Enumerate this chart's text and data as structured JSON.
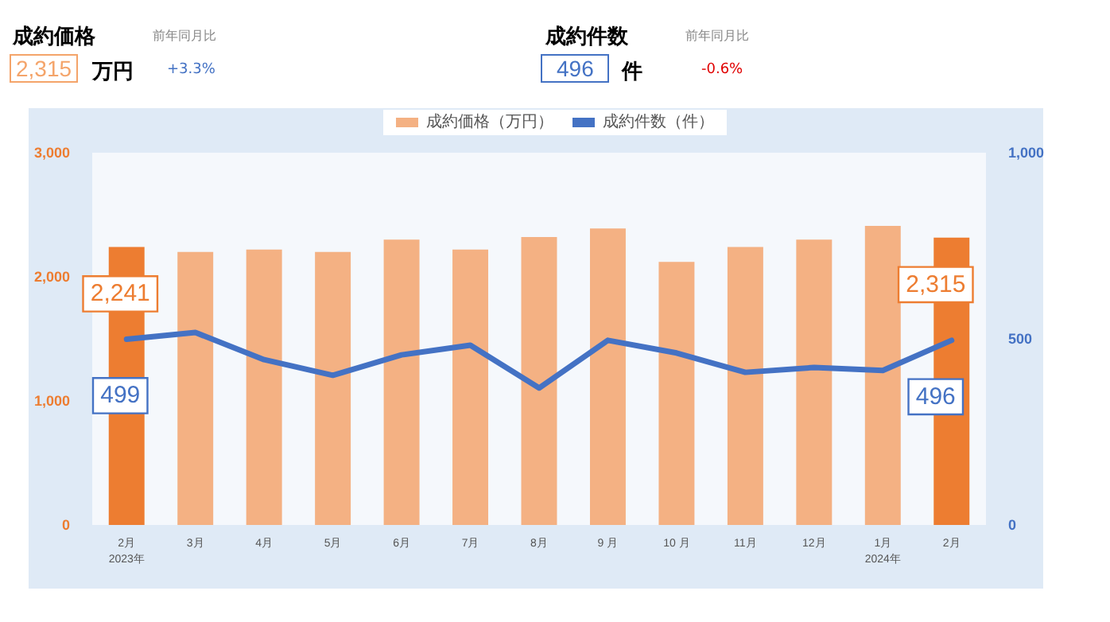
{
  "chart_data": {
    "type": "bar",
    "annotations": [
      "成約価格",
      "前年同月比",
      "2,315",
      "万円",
      "+3.3%",
      "成約件数",
      "前年同月比",
      "496",
      "件",
      "-0.6%"
    ],
    "categories": [
      "2月\n2023年",
      "3月",
      "4月",
      "5月",
      "6月",
      "7月",
      "8月",
      "9 月",
      "10 月",
      "11月",
      "12月",
      "1月\n2024年",
      "2月"
    ],
    "series": [
      {
        "name": "成約価格（万円）",
        "color": "#f4b183",
        "colors": [
          "#ed7d31",
          "#f4b183",
          "#f4b183",
          "#f4b183",
          "#f4b183",
          "#f4b183",
          "#f4b183",
          "#f4b183",
          "#f4b183",
          "#f4b183",
          "#f4b183",
          "#f4b183",
          "#ed7d31"
        ],
        "values": [
          2241,
          2200,
          2220,
          2200,
          2300,
          2220,
          2320,
          2390,
          2120,
          2240,
          2300,
          2410,
          2315
        ],
        "value_labels": [
          "2,241",
          null,
          null,
          null,
          null,
          null,
          null,
          null,
          null,
          null,
          null,
          null,
          "2,315"
        ]
      },
      {
        "name": "成約件数（件）",
        "type": "line",
        "axis": "y2",
        "color": "#4472c4",
        "values": [
          499,
          517,
          444,
          402,
          457,
          483,
          368,
          496,
          462,
          410,
          423,
          415,
          496
        ],
        "value_labels": [
          "499",
          null,
          null,
          null,
          null,
          null,
          null,
          null,
          null,
          null,
          null,
          null,
          "496"
        ]
      }
    ],
    "ylim": [
      0,
      3000
    ],
    "yticks": [
      0,
      {
        "value": 1000,
        "label": "1,000"
      },
      {
        "value": 2000,
        "label": "2,000"
      },
      {
        "value": 3000,
        "label": "3,000"
      }
    ],
    "y2lim": [
      0,
      1000
    ],
    "y2ticks": [
      0,
      500,
      {
        "value": 1000,
        "label": "1,000"
      }
    ],
    "legend": "top",
    "grid": false,
    "marker": "none",
    "line_style": "solid"
  }
}
